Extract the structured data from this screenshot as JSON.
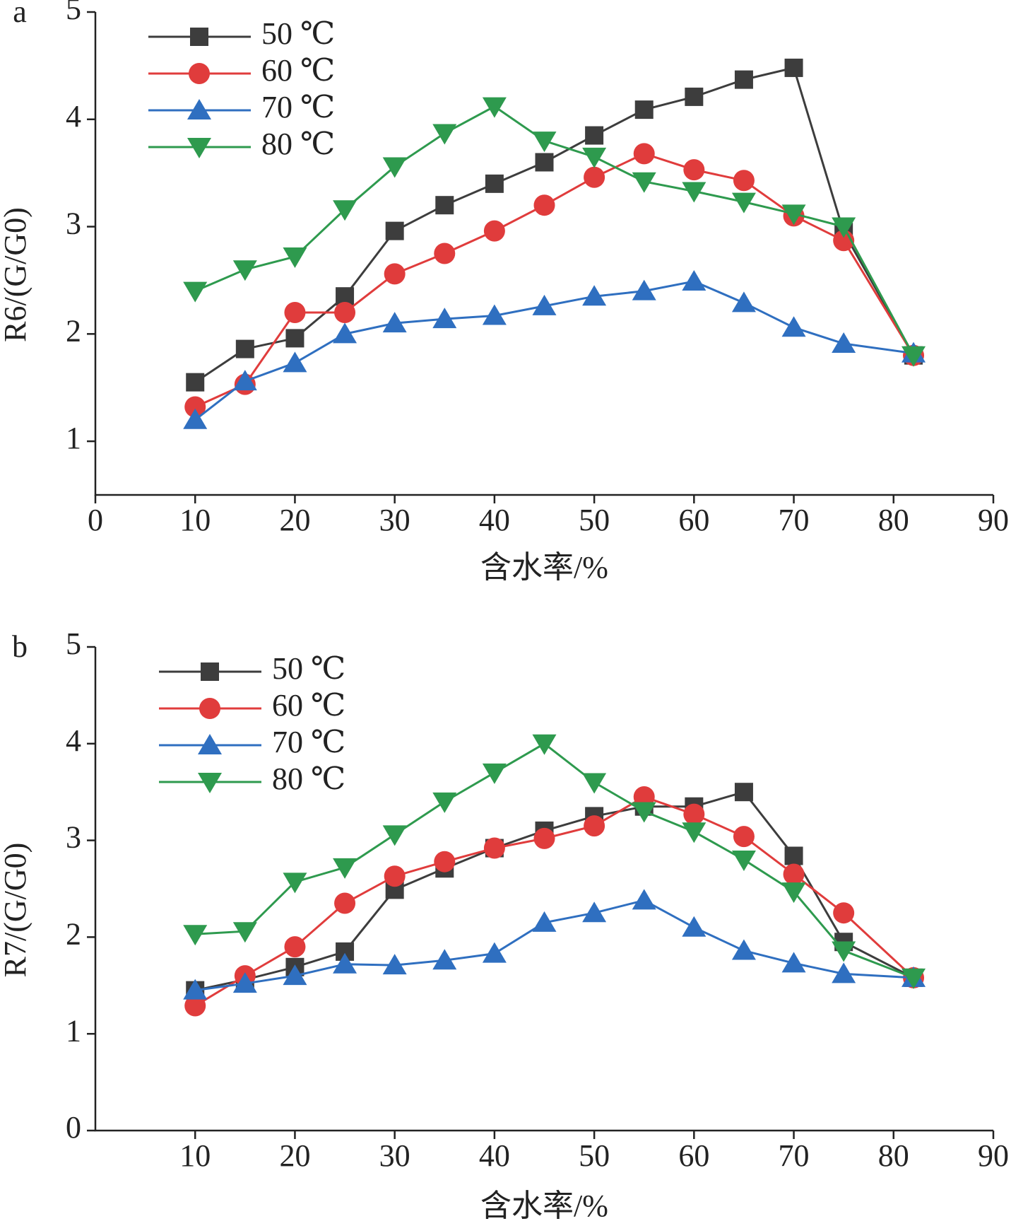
{
  "chart_data": [
    {
      "type": "line",
      "label": "a",
      "x_label": "含水率/%",
      "y_label": "R6/(G/G0)",
      "x": [
        10,
        15,
        20,
        25,
        30,
        35,
        40,
        45,
        50,
        55,
        60,
        65,
        70,
        75,
        82
      ],
      "xlim": [
        0,
        90
      ],
      "xticks": [
        0,
        10,
        20,
        30,
        40,
        50,
        60,
        70,
        80,
        90
      ],
      "ylim": [
        0.5,
        5
      ],
      "yticks": [
        1,
        2,
        3,
        4,
        5
      ],
      "legend": "upper left",
      "series": [
        {
          "name": "50 ℃",
          "color": "#3d3d3d",
          "marker": "square",
          "values": [
            1.55,
            1.86,
            1.96,
            2.35,
            2.96,
            3.2,
            3.4,
            3.6,
            3.85,
            4.09,
            4.21,
            4.37,
            4.48,
            2.95,
            1.8
          ]
        },
        {
          "name": "60 ℃",
          "color": "#e03c3c",
          "marker": "circle",
          "values": [
            1.32,
            1.53,
            2.2,
            2.2,
            2.56,
            2.75,
            2.96,
            3.2,
            3.46,
            3.68,
            3.53,
            3.43,
            3.1,
            2.87,
            1.8
          ]
        },
        {
          "name": "70 ℃",
          "color": "#2f6fc0",
          "marker": "triangle-up",
          "values": [
            1.2,
            1.56,
            1.73,
            2.0,
            2.1,
            2.14,
            2.17,
            2.26,
            2.35,
            2.4,
            2.49,
            2.29,
            2.06,
            1.91,
            1.82
          ]
        },
        {
          "name": "80 ℃",
          "color": "#2e9a4e",
          "marker": "triangle-down",
          "values": [
            2.4,
            2.6,
            2.72,
            3.16,
            3.56,
            3.87,
            4.12,
            3.8,
            3.65,
            3.42,
            3.33,
            3.23,
            3.12,
            3.0,
            1.8
          ]
        }
      ]
    },
    {
      "type": "line",
      "label": "b",
      "x_label": "含水率/%",
      "y_label": "R7/(G/G0)",
      "x": [
        10,
        15,
        20,
        25,
        30,
        35,
        40,
        45,
        50,
        55,
        60,
        65,
        70,
        75,
        82
      ],
      "xlim": [
        0,
        90
      ],
      "xticks": [
        10,
        20,
        30,
        40,
        50,
        60,
        70,
        80,
        90
      ],
      "ylim": [
        0,
        5
      ],
      "yticks": [
        0,
        1,
        2,
        3,
        4,
        5
      ],
      "legend": "upper left",
      "series": [
        {
          "name": "50 ℃",
          "color": "#3d3d3d",
          "marker": "square",
          "values": [
            1.45,
            1.56,
            1.69,
            1.85,
            2.49,
            2.71,
            2.92,
            3.1,
            3.25,
            3.35,
            3.35,
            3.5,
            2.84,
            1.95,
            1.58
          ]
        },
        {
          "name": "60 ℃",
          "color": "#e03c3c",
          "marker": "circle",
          "values": [
            1.29,
            1.6,
            1.9,
            2.35,
            2.63,
            2.78,
            2.92,
            3.02,
            3.15,
            3.45,
            3.27,
            3.04,
            2.65,
            2.25,
            1.58
          ]
        },
        {
          "name": "70 ℃",
          "color": "#2f6fc0",
          "marker": "triangle-up",
          "values": [
            1.45,
            1.52,
            1.6,
            1.72,
            1.71,
            1.76,
            1.83,
            2.15,
            2.25,
            2.38,
            2.1,
            1.86,
            1.73,
            1.62,
            1.58
          ]
        },
        {
          "name": "80 ℃",
          "color": "#2e9a4e",
          "marker": "triangle-down",
          "values": [
            2.03,
            2.06,
            2.57,
            2.72,
            3.06,
            3.4,
            3.7,
            4.0,
            3.6,
            3.3,
            3.09,
            2.8,
            2.47,
            1.86,
            1.58
          ]
        }
      ]
    }
  ]
}
